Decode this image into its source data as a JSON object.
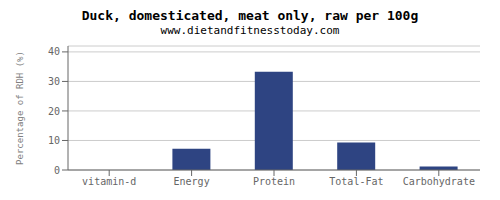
{
  "chart_data": {
    "type": "bar",
    "title": "Duck, domesticated, meat only, raw per 100g",
    "subtitle": "www.dietandfitnesstoday.com",
    "categories": [
      "vitamin-d",
      "Energy",
      "Protein",
      "Total-Fat",
      "Carbohydrate"
    ],
    "values": [
      0,
      7.2,
      33.3,
      9.3,
      1.2
    ],
    "color": "#2e4482",
    "ylabel": "Percentage of RDH (%)",
    "ylim": [
      0,
      42
    ],
    "yticks": [
      0,
      10,
      20,
      30,
      40
    ],
    "grid": true
  }
}
